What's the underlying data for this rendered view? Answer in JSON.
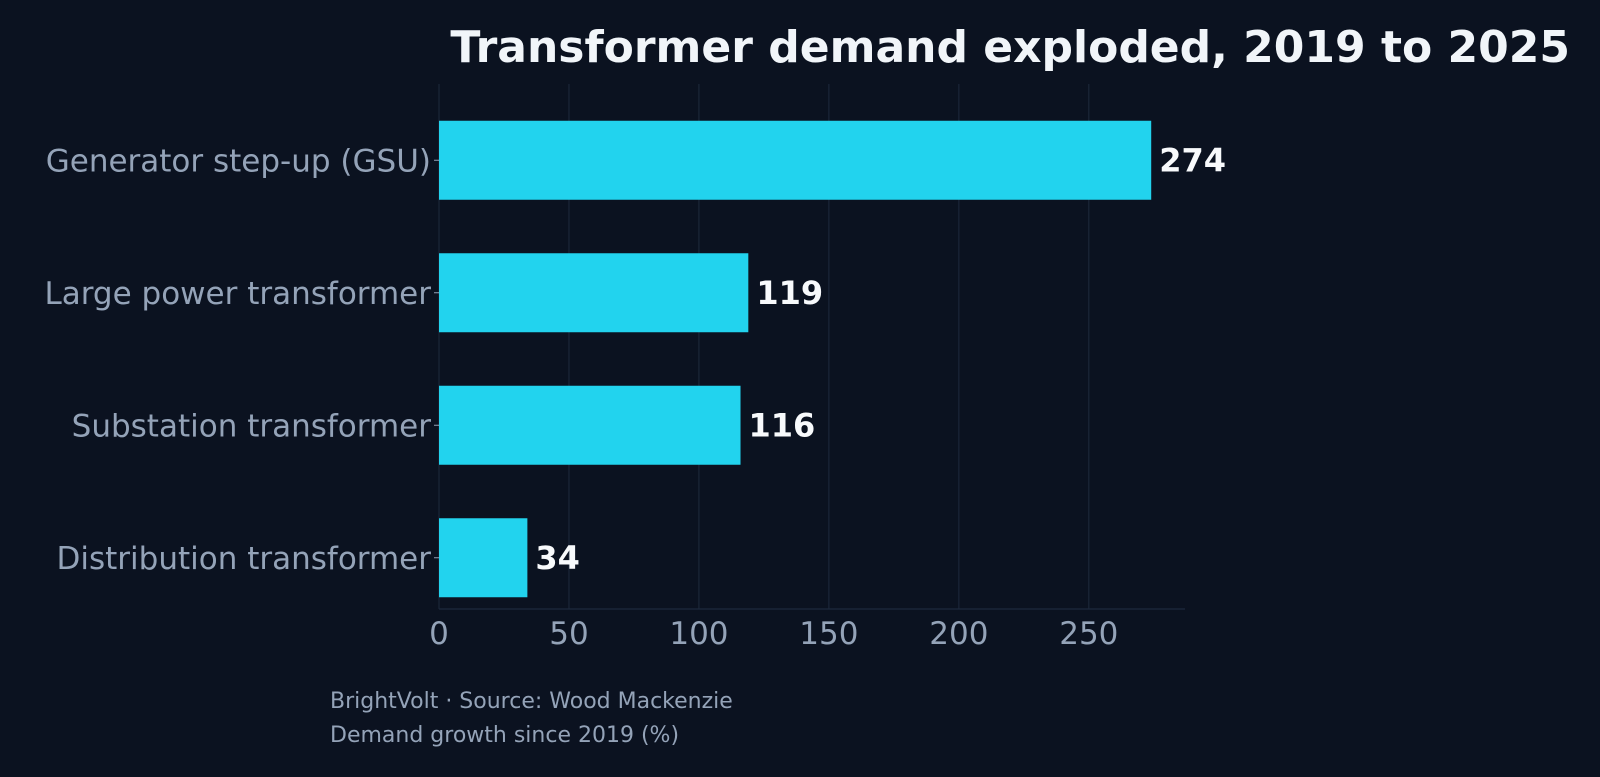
{
  "chart_data": {
    "type": "bar",
    "orientation": "horizontal",
    "title": "Transformer demand exploded, 2019 to 2025",
    "categories": [
      "Generator step-up (GSU)",
      "Large power transformer",
      "Substation transformer",
      "Distribution transformer"
    ],
    "values": [
      274,
      119,
      116,
      34
    ],
    "xlim": [
      0,
      287
    ],
    "xticks": [
      0,
      50,
      100,
      150,
      200,
      250
    ],
    "xlabel": "",
    "ylabel": "",
    "grid": "vertical",
    "legend": "none"
  },
  "footer": {
    "credit": "BrightVolt  ·  Source: Wood Mackenzie",
    "note": "Demand growth since 2019 (%)"
  },
  "colors": {
    "background": "#0b1220",
    "bar": "#22d3ee",
    "title": "#f1f5f9",
    "label": "#94a3b8",
    "value_label": "#f8fafc",
    "grid": "#1e2a3d"
  }
}
